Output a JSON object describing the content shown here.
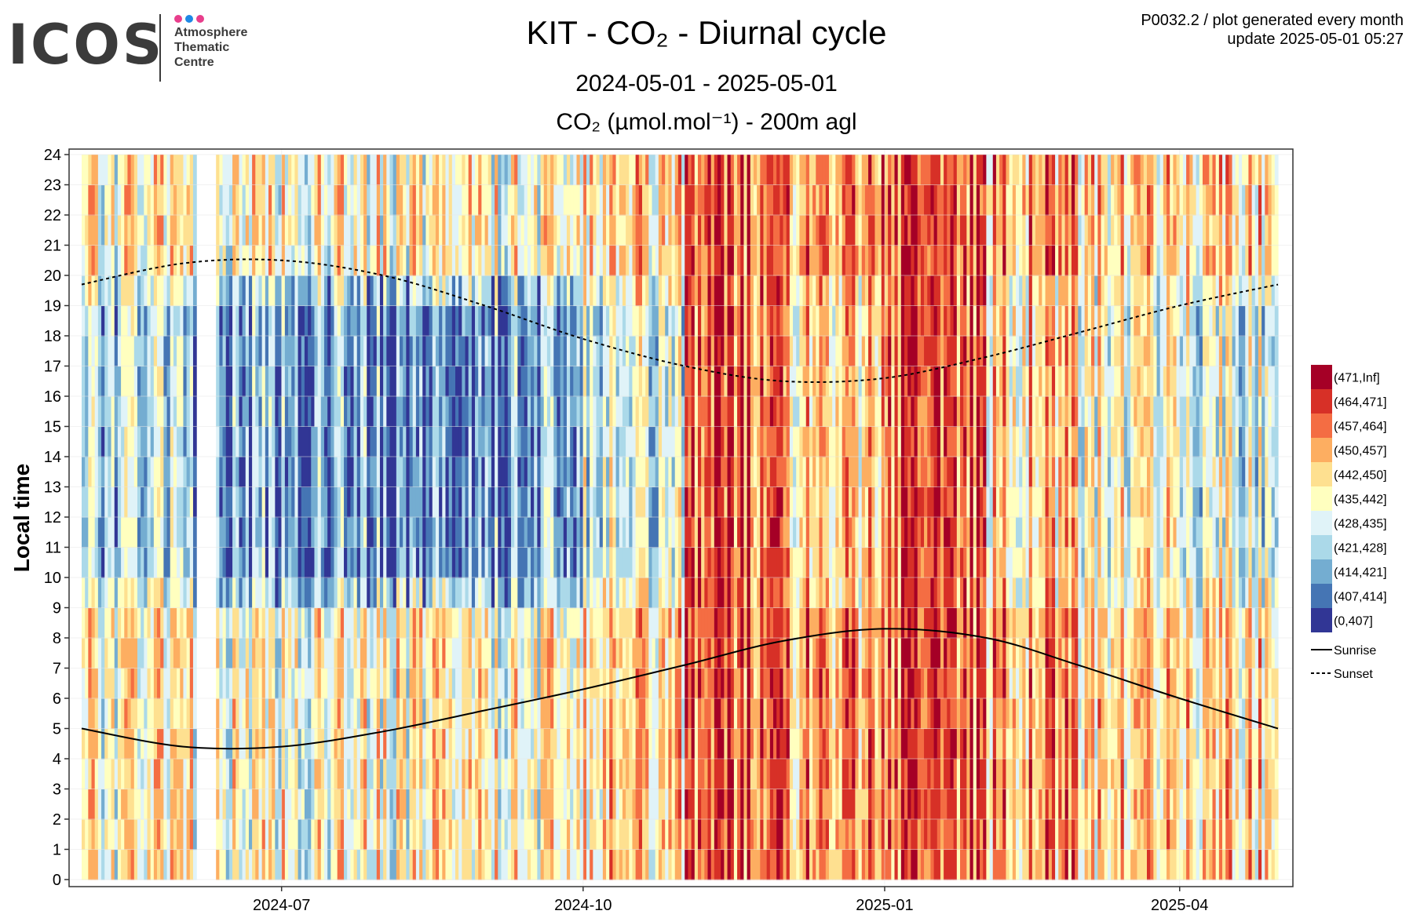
{
  "logo": {
    "wordmark": "ICOS",
    "lines": [
      "Atmosphere",
      "Thematic",
      "Centre"
    ],
    "dot_colors": [
      "#e83e8c",
      "#1e88e5",
      "#e83e8c"
    ]
  },
  "title": "KIT - CO₂ - Diurnal cycle",
  "subtitle": "2024-05-01 - 2025-05-01",
  "unit_line": "CO₂ (µmol.mol⁻¹) - 200m agl",
  "corner": {
    "line1": "P0032.2 / plot generated every month",
    "line2": "update  2025-05-01 05:27"
  },
  "chart_data": {
    "type": "heatmap",
    "xlabel": "",
    "ylabel": "Local time",
    "x_range": [
      "2024-05-01",
      "2025-05-01"
    ],
    "y_range": [
      0,
      24
    ],
    "x_ticks": [
      "2024-07",
      "2024-10",
      "2025-01",
      "2025-04"
    ],
    "x_tick_dates": [
      "2024-07-01",
      "2024-10-01",
      "2025-01-01",
      "2025-04-01"
    ],
    "y_ticks": [
      "0",
      "1",
      "2",
      "3",
      "4",
      "5",
      "6",
      "7",
      "8",
      "9",
      "10",
      "11",
      "12",
      "13",
      "14",
      "15",
      "16",
      "17",
      "18",
      "19",
      "20",
      "21",
      "22",
      "23",
      "24"
    ],
    "grid": true,
    "legend_position": "right",
    "bins": [
      {
        "label": "(471,Inf]",
        "color": "#a50026"
      },
      {
        "label": "(464,471]",
        "color": "#d73027"
      },
      {
        "label": "(457,464]",
        "color": "#f46d43"
      },
      {
        "label": "(450,457]",
        "color": "#fdae61"
      },
      {
        "label": "(442,450]",
        "color": "#fee090"
      },
      {
        "label": "(435,442]",
        "color": "#ffffbf"
      },
      {
        "label": "(428,435]",
        "color": "#e0f3f8"
      },
      {
        "label": "(421,428]",
        "color": "#abd9e9"
      },
      {
        "label": "(414,421]",
        "color": "#74add1"
      },
      {
        "label": "(407,414]",
        "color": "#4575b4"
      },
      {
        "label": "(0,407]",
        "color": "#313695"
      }
    ],
    "lines": [
      {
        "name": "Sunrise",
        "style": "solid",
        "x": [
          "2024-05-01",
          "2024-06-01",
          "2024-07-01",
          "2024-08-01",
          "2024-09-01",
          "2024-10-01",
          "2024-11-01",
          "2024-12-01",
          "2025-01-01",
          "2025-02-01",
          "2025-03-01",
          "2025-04-01",
          "2025-05-01"
        ],
        "y": [
          5.0,
          4.4,
          4.4,
          4.9,
          5.6,
          6.3,
          7.1,
          7.9,
          8.3,
          8.0,
          7.1,
          6.0,
          5.0
        ]
      },
      {
        "name": "Sunset",
        "style": "dashed",
        "x": [
          "2024-05-01",
          "2024-06-01",
          "2024-07-01",
          "2024-08-01",
          "2024-09-01",
          "2024-10-01",
          "2024-11-01",
          "2024-12-01",
          "2025-01-01",
          "2025-02-01",
          "2025-03-01",
          "2025-04-01",
          "2025-05-01"
        ],
        "y": [
          19.7,
          20.4,
          20.5,
          20.0,
          19.0,
          17.9,
          17.0,
          16.5,
          16.6,
          17.3,
          18.1,
          19.0,
          19.7
        ]
      }
    ],
    "monthly_tendency": {
      "months": [
        "2024-05",
        "2024-06",
        "2024-07",
        "2024-08",
        "2024-09",
        "2024-10",
        "2024-11",
        "2024-12",
        "2025-01",
        "2025-02",
        "2025-03",
        "2025-04"
      ],
      "night_bin_index": [
        5,
        5,
        5,
        5,
        5,
        4,
        2,
        3,
        2,
        3,
        4,
        4
      ],
      "day_bin_index": [
        7,
        8,
        8,
        9,
        8,
        6,
        2,
        4,
        2,
        4,
        5,
        6
      ]
    },
    "data_gaps": [
      [
        "2024-06-05",
        "2024-06-10"
      ]
    ]
  }
}
